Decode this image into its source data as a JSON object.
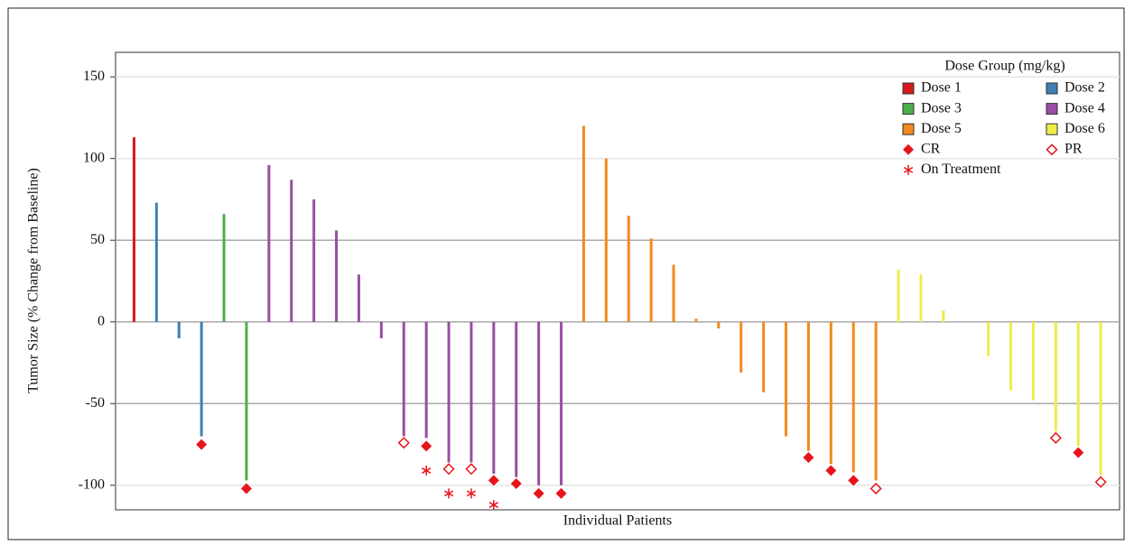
{
  "chart_data": {
    "type": "bar",
    "y_label": "Tumor Size (% Change from Baseline)",
    "x_label": "Individual Patients",
    "legend_title": "Dose Group (mg/kg)",
    "legend": "upper right",
    "grid": true,
    "ylim": [
      -115,
      165
    ],
    "yticks": [
      -100,
      -50,
      0,
      50,
      100,
      150
    ],
    "categories": [
      null,
      null,
      null,
      null,
      null,
      null,
      null,
      null,
      null,
      null,
      null,
      null,
      null,
      null,
      null,
      null,
      null,
      null,
      null,
      null,
      null,
      null,
      null,
      null,
      null,
      null,
      null,
      null,
      null,
      null,
      null,
      null,
      null,
      null,
      null,
      null,
      null,
      null,
      null,
      null,
      null,
      null,
      null,
      null
    ],
    "series": [
      {
        "name": "Dose 1",
        "color": "#d7191c",
        "marker": "bar",
        "values": [
          113,
          null,
          null,
          null,
          null,
          null,
          null,
          null,
          null,
          null,
          null,
          null,
          null,
          null,
          null,
          null,
          null,
          null,
          null,
          null,
          null,
          null,
          null,
          null,
          null,
          null,
          null,
          null,
          null,
          null,
          null,
          null,
          null,
          null,
          null,
          null,
          null,
          null,
          null,
          null,
          null,
          null,
          null,
          null
        ]
      },
      {
        "name": "Dose 2",
        "color": "#3e7fb5",
        "marker": "bar",
        "values": [
          null,
          73,
          -10,
          -70,
          null,
          null,
          null,
          null,
          null,
          null,
          null,
          null,
          null,
          null,
          null,
          null,
          null,
          null,
          null,
          null,
          null,
          null,
          null,
          null,
          null,
          null,
          null,
          null,
          null,
          null,
          null,
          null,
          null,
          null,
          null,
          null,
          null,
          null,
          null,
          null,
          null,
          null,
          null,
          null
        ]
      },
      {
        "name": "Dose 3",
        "color": "#4daf4a",
        "marker": "bar",
        "values": [
          null,
          null,
          null,
          null,
          66,
          -97,
          null,
          null,
          null,
          null,
          null,
          null,
          null,
          null,
          null,
          null,
          null,
          null,
          null,
          null,
          null,
          null,
          null,
          null,
          null,
          null,
          null,
          null,
          null,
          null,
          null,
          null,
          null,
          null,
          null,
          null,
          null,
          null,
          null,
          null,
          null,
          null,
          null,
          null
        ]
      },
      {
        "name": "Dose 4",
        "color": "#984ea3",
        "marker": "bar",
        "values": [
          null,
          null,
          null,
          null,
          null,
          null,
          96,
          87,
          75,
          56,
          29,
          -10,
          -70,
          -71,
          -86,
          -86,
          -93,
          -95,
          -100,
          -100,
          null,
          null,
          null,
          null,
          null,
          null,
          null,
          null,
          null,
          null,
          null,
          null,
          null,
          null,
          null,
          null,
          null,
          null,
          null,
          null,
          null,
          null,
          null,
          null
        ]
      },
      {
        "name": "Dose 5",
        "color": "#f28a1e",
        "marker": "bar",
        "values": [
          null,
          null,
          null,
          null,
          null,
          null,
          null,
          null,
          null,
          null,
          null,
          null,
          null,
          null,
          null,
          null,
          null,
          null,
          null,
          null,
          120,
          100,
          65,
          51,
          35,
          2,
          -4,
          -31,
          -43,
          -70,
          -79,
          -87,
          -92,
          -97,
          null,
          null,
          null,
          null,
          null,
          null,
          null,
          null,
          null,
          null
        ]
      },
      {
        "name": "Dose 6",
        "color": "#eded4a",
        "marker": "bar",
        "values": [
          null,
          null,
          null,
          null,
          null,
          null,
          null,
          null,
          null,
          null,
          null,
          null,
          null,
          null,
          null,
          null,
          null,
          null,
          null,
          null,
          null,
          null,
          null,
          null,
          null,
          null,
          null,
          null,
          null,
          null,
          null,
          null,
          null,
          null,
          32,
          29,
          7,
          0,
          -21,
          -42,
          -48,
          -67,
          -76,
          -94
        ]
      },
      {
        "name": "CR",
        "color": "#e8141c",
        "marker": "diamond",
        "values": [
          null,
          null,
          null,
          -75,
          null,
          -102,
          null,
          null,
          null,
          null,
          null,
          null,
          null,
          -76,
          null,
          null,
          -97,
          -99,
          -105,
          -105,
          null,
          null,
          null,
          null,
          null,
          null,
          null,
          null,
          null,
          null,
          -83,
          -91,
          -97,
          null,
          null,
          null,
          null,
          null,
          null,
          null,
          null,
          null,
          -80,
          null
        ]
      },
      {
        "name": "PR",
        "color": "#e8141c",
        "marker": "diamond-open",
        "values": [
          null,
          null,
          null,
          null,
          null,
          null,
          null,
          null,
          null,
          null,
          null,
          null,
          -74,
          null,
          -90,
          -90,
          null,
          null,
          null,
          null,
          null,
          null,
          null,
          null,
          null,
          null,
          null,
          null,
          null,
          null,
          null,
          null,
          null,
          -102,
          null,
          null,
          null,
          null,
          null,
          null,
          null,
          -71,
          null,
          -98
        ]
      },
      {
        "name": "On Treatment",
        "color": "#e8141c",
        "marker": "asterisk",
        "values": [
          null,
          null,
          null,
          null,
          null,
          null,
          null,
          null,
          null,
          null,
          null,
          null,
          null,
          -91,
          -105,
          -105,
          -112,
          null,
          null,
          null,
          null,
          null,
          null,
          null,
          null,
          null,
          null,
          null,
          null,
          null,
          null,
          null,
          null,
          null,
          null,
          null,
          null,
          null,
          null,
          null,
          null,
          null,
          null,
          null
        ]
      }
    ]
  }
}
